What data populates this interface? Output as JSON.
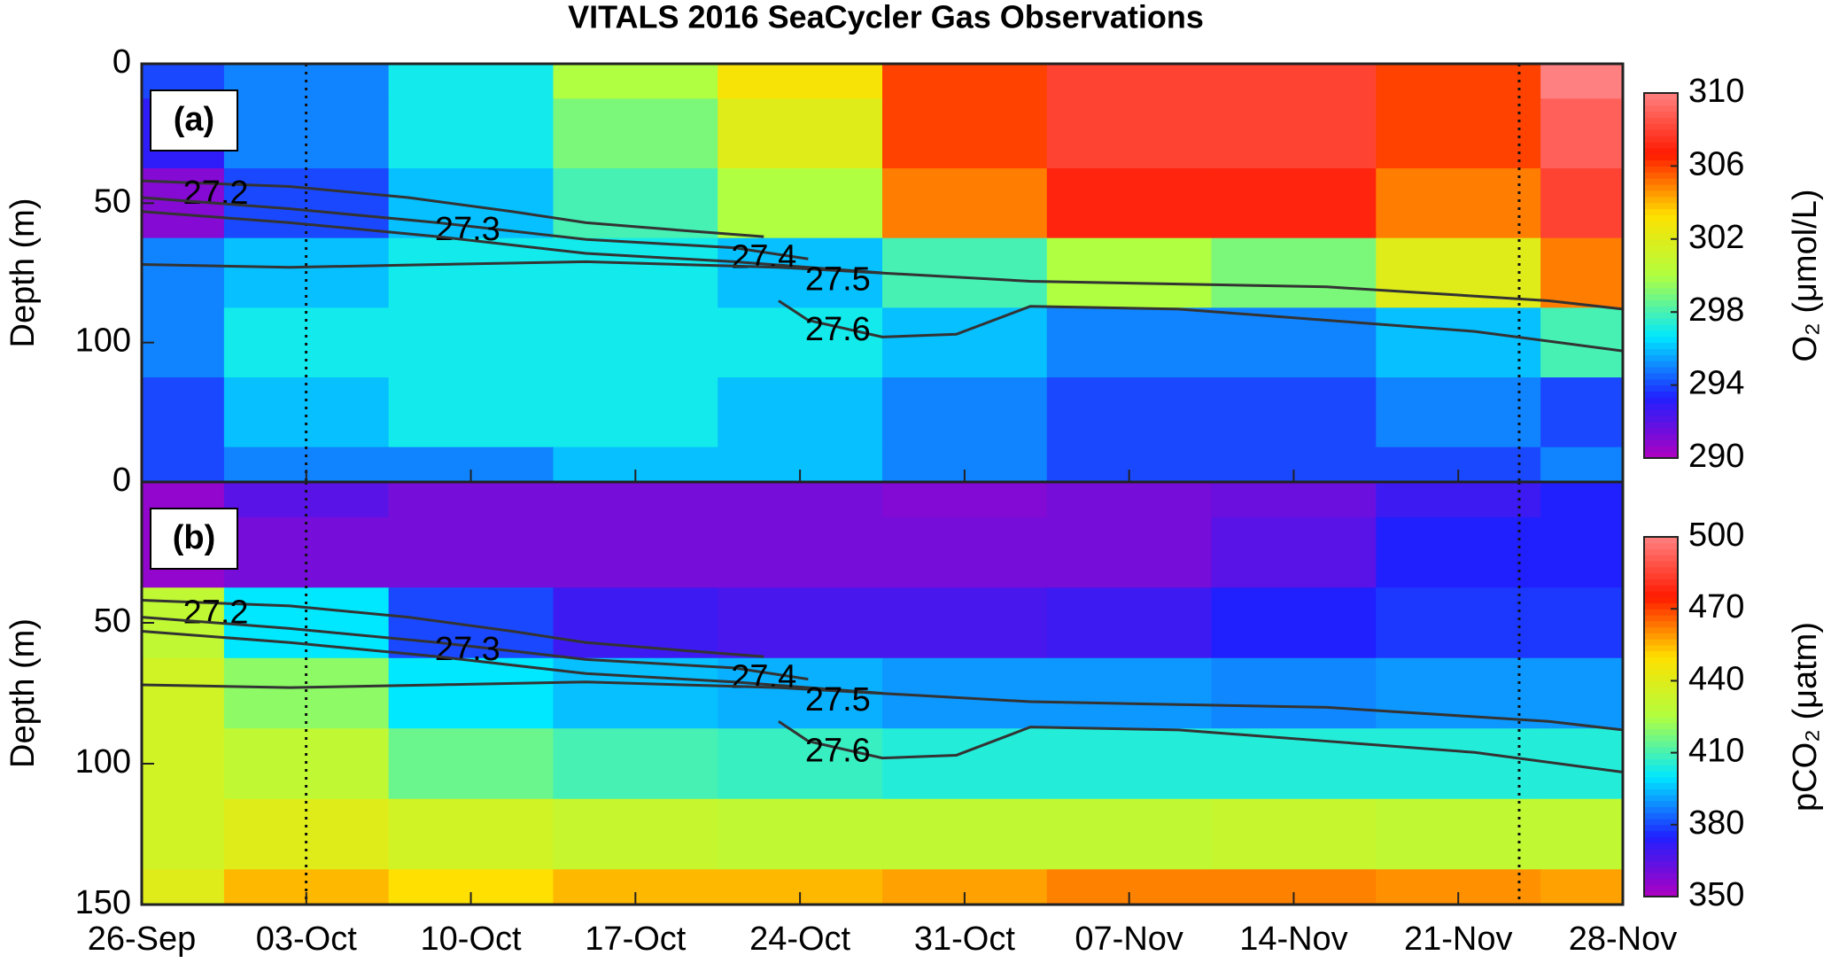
{
  "title": "VITALS 2016 SeaCycler Gas Observations",
  "chart_data": [
    {
      "type": "contour",
      "panel_label": "(a)",
      "ylabel": "Depth (m)",
      "colorbar_label": "O₂ (μmol/L)",
      "x": [
        "26-Sep",
        "03-Oct",
        "10-Oct",
        "17-Oct",
        "24-Oct",
        "31-Oct",
        "07-Nov",
        "14-Nov",
        "21-Nov",
        "28-Nov"
      ],
      "y": [
        0,
        25,
        50,
        75,
        100,
        125,
        150
      ],
      "z": [
        [
          294,
          295,
          297,
          300,
          303,
          306,
          308,
          308,
          306,
          310
        ],
        [
          293,
          295,
          297,
          299,
          302,
          306,
          308,
          308,
          306,
          309
        ],
        [
          291,
          294,
          296,
          298,
          300,
          305,
          307,
          307,
          305,
          308
        ],
        [
          295,
          296,
          297,
          297,
          296,
          298,
          300,
          299,
          302,
          305
        ],
        [
          295,
          297,
          297,
          297,
          297,
          296,
          295,
          295,
          296,
          298
        ],
        [
          294,
          296,
          297,
          297,
          296,
          295,
          294,
          294,
          295,
          294
        ],
        [
          294,
          295,
          295,
          296,
          296,
          295,
          294,
          294,
          294,
          295
        ]
      ],
      "ylim": [
        0,
        150
      ],
      "yticks": [
        0,
        50,
        100
      ],
      "y_reversed": true,
      "clim": [
        290,
        310
      ],
      "cticks": [
        290,
        294,
        298,
        302,
        306,
        310
      ],
      "colormap": [
        "#b000c0",
        "#2020ff",
        "#00e8ff",
        "#b0ff40",
        "#ffe000",
        "#ff1a00",
        "#ff8080"
      ],
      "contours": [
        27.2,
        27.3,
        27.4,
        27.5,
        27.6
      ]
    },
    {
      "type": "contour",
      "panel_label": "(b)",
      "ylabel": "Depth (m)",
      "colorbar_label": "pCO₂ (μatm)",
      "x": [
        "26-Sep",
        "03-Oct",
        "10-Oct",
        "17-Oct",
        "24-Oct",
        "31-Oct",
        "07-Nov",
        "14-Nov",
        "21-Nov",
        "28-Nov"
      ],
      "y": [
        0,
        25,
        50,
        75,
        100,
        125,
        150
      ],
      "z": [
        [
          355,
          365,
          360,
          360,
          360,
          358,
          360,
          362,
          370,
          375
        ],
        [
          355,
          360,
          360,
          360,
          360,
          360,
          360,
          365,
          375,
          375
        ],
        [
          430,
          400,
          380,
          370,
          368,
          368,
          370,
          375,
          378,
          378
        ],
        [
          435,
          420,
          400,
          395,
          393,
          390,
          390,
          388,
          390,
          390
        ],
        [
          435,
          430,
          415,
          410,
          408,
          405,
          405,
          405,
          405,
          405
        ],
        [
          435,
          440,
          435,
          432,
          430,
          430,
          430,
          432,
          430,
          430
        ],
        [
          440,
          455,
          450,
          455,
          455,
          458,
          462,
          462,
          460,
          458
        ]
      ],
      "ylim": [
        0,
        150
      ],
      "yticks": [
        0,
        50,
        100,
        150
      ],
      "y_reversed": true,
      "clim": [
        350,
        500
      ],
      "cticks": [
        350,
        380,
        410,
        440,
        470,
        500
      ],
      "colormap": [
        "#b000c0",
        "#2020ff",
        "#00e8ff",
        "#b0ff40",
        "#ffe000",
        "#ff1a00",
        "#ff8080"
      ],
      "contours": [
        27.2,
        27.3,
        27.4,
        27.5,
        27.6
      ]
    }
  ]
}
